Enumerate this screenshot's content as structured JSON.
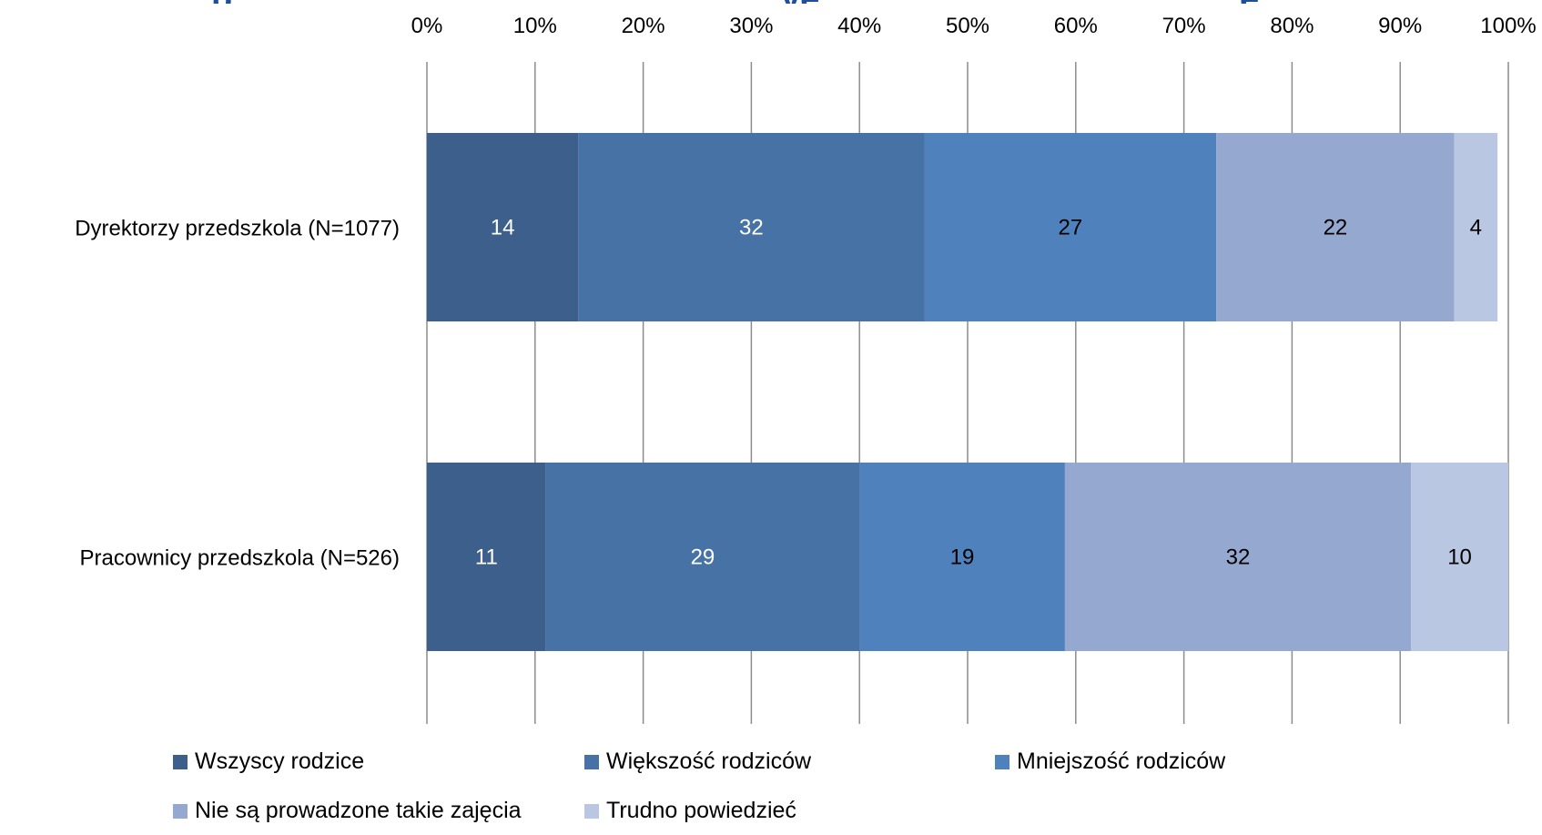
{
  "chart_data": {
    "type": "bar",
    "orientation": "horizontal",
    "stacked": true,
    "percent": true,
    "title": "",
    "xlabel": "",
    "ylabel": "",
    "xlim": [
      0,
      100
    ],
    "x_ticks": [
      "0%",
      "10%",
      "20%",
      "30%",
      "40%",
      "50%",
      "60%",
      "70%",
      "80%",
      "90%",
      "100%"
    ],
    "x_axis_position": "top",
    "grid": true,
    "legend_position": "bottom",
    "categories": [
      "Dyrektorzy przedszkola (N=1077)",
      "Pracownicy przedszkola (N=526)"
    ],
    "series": [
      {
        "name": "Wszyscy rodzice",
        "values": [
          14,
          11
        ],
        "color": "#3d5f8c",
        "label_color": "#ffffff"
      },
      {
        "name": "Większość rodziców",
        "values": [
          32,
          29
        ],
        "color": "#4772a6",
        "label_color": "#ffffff"
      },
      {
        "name": "Mniejszość rodziców",
        "values": [
          27,
          19
        ],
        "color": "#4f81bd",
        "label_color": "#000000"
      },
      {
        "name": "Nie są prowadzone takie zajęcia",
        "values": [
          22,
          32
        ],
        "color": "#95a9d0",
        "label_color": "#000000"
      },
      {
        "name": "Trudno powiedzieć",
        "values": [
          4,
          10
        ],
        "color": "#b9c7e2",
        "label_color": "#000000"
      }
    ]
  }
}
